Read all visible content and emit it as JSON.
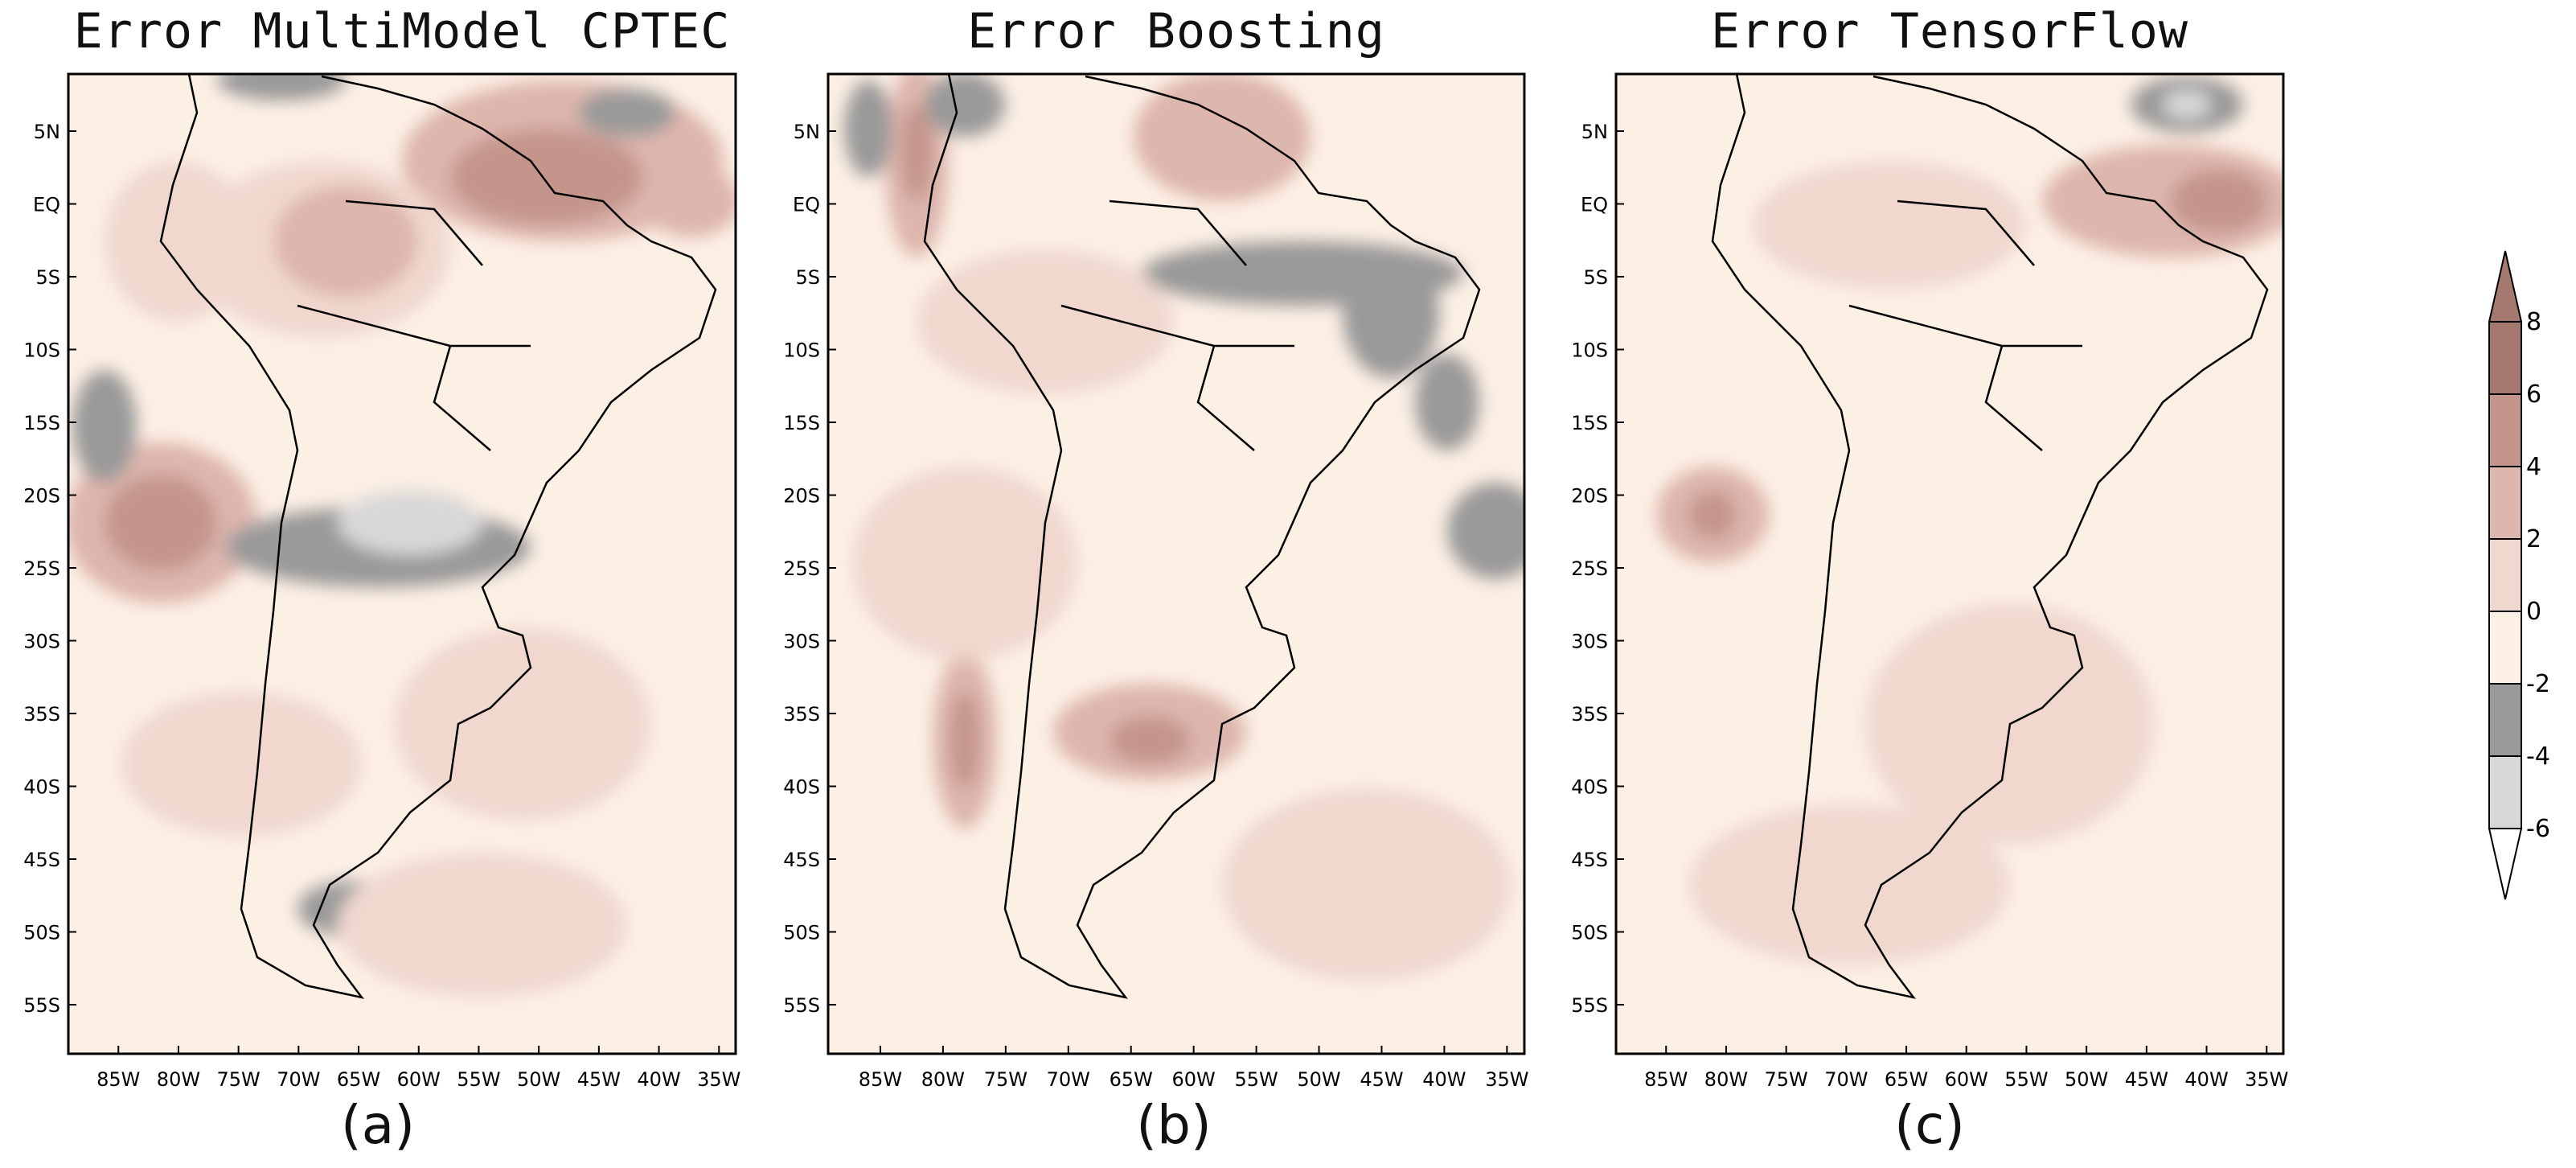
{
  "panels": [
    {
      "title": "Error MultiModel CPTEC",
      "label": "(a)"
    },
    {
      "title": "Error Boosting",
      "label": "(b)"
    },
    {
      "title": "Error TensorFlow",
      "label": "(c)"
    }
  ],
  "lat_ticks": [
    "5N",
    "EQ",
    "5S",
    "10S",
    "15S",
    "20S",
    "25S",
    "30S",
    "35S",
    "40S",
    "45S",
    "50S",
    "55S"
  ],
  "lon_ticks": [
    "85W",
    "80W",
    "75W",
    "70W",
    "65W",
    "60W",
    "55W",
    "50W",
    "45W",
    "40W",
    "35W"
  ],
  "colorbar": {
    "labels": [
      "8",
      "6",
      "4",
      "2",
      "0",
      "-2",
      "-4",
      "-6"
    ],
    "bins": [
      {
        "range": [
          6,
          8
        ],
        "color": "#a5796f"
      },
      {
        "range": [
          4,
          6
        ],
        "color": "#c4958b"
      },
      {
        "range": [
          2,
          4
        ],
        "color": "#ddb6ad"
      },
      {
        "range": [
          0,
          2
        ],
        "color": "#f0d8cf"
      },
      {
        "range": [
          -2,
          0
        ],
        "color": "#fcefe4"
      },
      {
        "range": [
          -4,
          -2
        ],
        "color": "#9a9a9a"
      },
      {
        "range": [
          -6,
          -4
        ],
        "color": "#d8d8d8"
      }
    ]
  },
  "colors": {
    "background": "#fcefe4",
    "frame": "#000000"
  }
}
